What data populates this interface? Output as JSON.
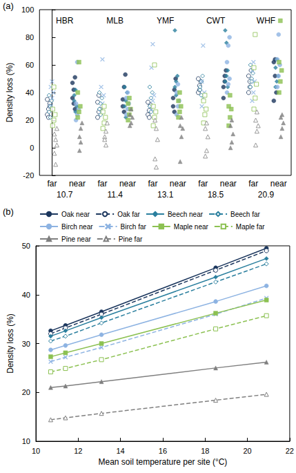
{
  "chart_data": [
    {
      "type": "scatter",
      "title": "(a)",
      "ylabel": "Density loss (%)",
      "ylim": [
        -20,
        100
      ],
      "yticks": [
        -20,
        0,
        20,
        40,
        60,
        80,
        100
      ],
      "grid": false,
      "categories": [
        "far",
        "near",
        "far",
        "near",
        "far",
        "near",
        "far",
        "near",
        "far",
        "near"
      ],
      "sites": [
        "HBR",
        "MLB",
        "YMF",
        "CWT",
        "WHF"
      ],
      "temperatures": [
        10.7,
        11.4,
        13.1,
        18.5,
        20.9
      ],
      "series": [
        {
          "color": "#1b365d",
          "marker": "circle",
          "values": [
            null,
            [
              36,
              42,
              51,
              47,
              32,
              28
            ],
            null,
            [
              35,
              44,
              53,
              30,
              26
            ],
            null,
            [
              36,
              42,
              50,
              30,
              26
            ],
            null,
            [
              44,
              52,
              56,
              36,
              48
            ],
            null,
            [
              62,
              64,
              40,
              34,
              52
            ]
          ]
        },
        {
          "color": "#1b365d",
          "marker": "circle-open",
          "values": [
            [
              24,
              28,
              32,
              35,
              22,
              30
            ],
            null,
            [
              22,
              26,
              28,
              33,
              38
            ],
            null,
            [
              24,
              27,
              31,
              33,
              22
            ],
            null,
            [
              40,
              45,
              48,
              50,
              42
            ],
            null,
            [
              40,
              48,
              56,
              52,
              44
            ],
            null
          ]
        },
        {
          "color": "#2a7f9e",
          "marker": "diamond",
          "values": [
            null,
            [
              38,
              42,
              30,
              34,
              26
            ],
            null,
            [
              30,
              34,
              40,
              44,
              22
            ],
            null,
            [
              44,
              48,
              52,
              85,
              38
            ],
            null,
            [
              48,
              52,
              56,
              85,
              76,
              44
            ],
            null,
            [
              44,
              48,
              52,
              58,
              64
            ]
          ]
        },
        {
          "color": "#2a7f9e",
          "marker": "diamond-open",
          "values": [
            [
              26,
              30,
              34,
              38,
              22
            ],
            null,
            [
              28,
              32,
              36,
              40,
              24
            ],
            null,
            [
              30,
              36,
              40,
              44,
              26
            ],
            null,
            [
              42,
              48,
              52,
              44,
              38
            ],
            null,
            [
              44,
              50,
              54,
              60,
              48
            ],
            null
          ]
        },
        {
          "color": "#8db3e2",
          "marker": "circle",
          "values": [
            null,
            [
              20,
              24,
              28,
              32,
              62
            ],
            null,
            [
              24,
              28,
              32,
              36,
              40
            ],
            null,
            [
              24,
              30,
              34,
              40,
              46
            ],
            null,
            [
              40,
              46,
              50,
              62,
              74,
              80
            ],
            null,
            [
              44,
              52,
              60,
              64,
              82
            ]
          ]
        },
        {
          "color": "#8db3e2",
          "marker": "cross",
          "values": [
            [
              30,
              36,
              40,
              44,
              48
            ],
            null,
            [
              26,
              32,
              38,
              44,
              64
            ],
            null,
            [
              28,
              34,
              38,
              58,
              75
            ],
            null,
            [
              30,
              36,
              40,
              48,
              74
            ],
            null,
            [
              34,
              40,
              48,
              56,
              62
            ],
            null
          ]
        },
        {
          "color": "#8cc152",
          "marker": "square",
          "values": [
            null,
            [
              22,
              26,
              30,
              40,
              62
            ],
            null,
            [
              20,
              24,
              28,
              32,
              36
            ],
            null,
            [
              22,
              26,
              30,
              34,
              40
            ],
            null,
            [
              16,
              22,
              28,
              30,
              38
            ],
            null,
            [
              40,
              48,
              56,
              62,
              92
            ]
          ]
        },
        {
          "color": "#8cc152",
          "marker": "square-open",
          "values": [
            [
              16,
              20,
              24,
              28,
              44
            ],
            null,
            [
              14,
              18,
              22,
              26,
              30
            ],
            null,
            [
              16,
              22,
              26,
              30,
              60
            ],
            null,
            [
              18,
              24,
              28,
              34,
              38
            ],
            null,
            [
              28,
              36,
              46,
              58,
              82
            ],
            null
          ]
        },
        {
          "color": "#7f7f7f",
          "marker": "triangle",
          "values": [
            null,
            [
              8,
              14,
              18,
              -2,
              4
            ],
            null,
            [
              16,
              18,
              22,
              24,
              28
            ],
            null,
            [
              -10,
              8,
              14,
              16,
              22
            ],
            null,
            [
              0,
              4,
              10,
              16,
              20
            ],
            null,
            [
              8,
              14,
              18,
              22,
              24
            ]
          ]
        },
        {
          "color": "#7f7f7f",
          "marker": "triangle-open",
          "values": [
            [
              10,
              6,
              2,
              -4,
              -12,
              14
            ],
            null,
            [
              8,
              12,
              18,
              6,
              2
            ],
            null,
            [
              -8,
              -14,
              6,
              20,
              14
            ],
            null,
            [
              -6,
              -2,
              8,
              14,
              18
            ],
            null,
            [
              2,
              12,
              16,
              20,
              26
            ],
            null
          ]
        }
      ]
    },
    {
      "type": "line",
      "title": "(b)",
      "xlabel": "Mean soil temperature per site (°C)",
      "ylabel": "Density loss (%)",
      "x": [
        10.7,
        11.4,
        13.1,
        18.5,
        20.9
      ],
      "xlim": [
        10,
        22
      ],
      "xticks": [
        10,
        12,
        14,
        16,
        18,
        20,
        22
      ],
      "ylim": [
        10,
        50
      ],
      "yticks": [
        10,
        20,
        30,
        40,
        50
      ],
      "grid": false,
      "legend": "top",
      "series": [
        {
          "name": "Oak near",
          "color": "#1b365d",
          "marker": "circle",
          "line_style": "solid",
          "values": [
            32.6,
            33.7,
            36.5,
            45.5,
            49.5
          ]
        },
        {
          "name": "Oak far",
          "color": "#1b365d",
          "marker": "circle-open",
          "line_style": "dashed",
          "values": [
            32.0,
            33.2,
            36.0,
            45.0,
            49.0
          ]
        },
        {
          "name": "Beech near",
          "color": "#2a7f9e",
          "marker": "diamond",
          "line_style": "solid",
          "values": [
            31.5,
            32.6,
            35.3,
            43.6,
            47.4
          ]
        },
        {
          "name": "Beech far",
          "color": "#2a7f9e",
          "marker": "diamond-open",
          "line_style": "dashed",
          "values": [
            30.5,
            31.5,
            34.2,
            42.6,
            46.3
          ]
        },
        {
          "name": "Birch near",
          "color": "#8db3e2",
          "marker": "circle",
          "line_style": "solid",
          "values": [
            28.7,
            29.6,
            31.8,
            38.6,
            41.8
          ]
        },
        {
          "name": "Birch far",
          "color": "#8db3e2",
          "marker": "cross",
          "line_style": "dashed",
          "values": [
            26.3,
            27.2,
            29.2,
            36.0,
            39.3
          ]
        },
        {
          "name": "Maple near",
          "color": "#8cc152",
          "marker": "square",
          "line_style": "solid",
          "values": [
            27.3,
            28.1,
            30.0,
            36.2,
            38.9
          ]
        },
        {
          "name": "Maple far",
          "color": "#8cc152",
          "marker": "square-open",
          "line_style": "dashed",
          "values": [
            24.2,
            24.9,
            26.7,
            33.0,
            35.7
          ]
        },
        {
          "name": "Pine near",
          "color": "#7f7f7f",
          "marker": "triangle",
          "line_style": "solid",
          "values": [
            21.0,
            21.3,
            22.2,
            25.0,
            26.2
          ]
        },
        {
          "name": "Pine far",
          "color": "#7f7f7f",
          "marker": "triangle-open",
          "line_style": "dashed",
          "values": [
            14.4,
            14.8,
            15.7,
            18.4,
            19.6
          ]
        }
      ]
    }
  ]
}
